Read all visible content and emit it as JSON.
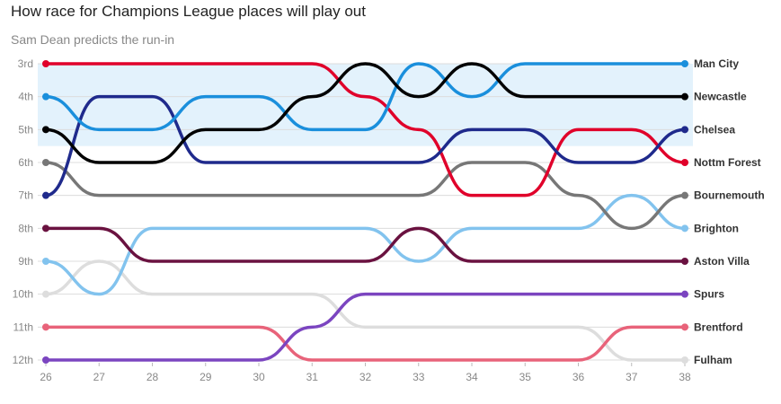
{
  "chart_data": {
    "type": "line",
    "subtype": "bump",
    "title": "How race for Champions League places will play out",
    "subtitle": "Sam Dean predicts the run-in",
    "xlabel": "",
    "ylabel": "",
    "x": [
      26,
      27,
      28,
      29,
      30,
      31,
      32,
      33,
      34,
      35,
      36,
      37,
      38
    ],
    "y_ticks": [
      3,
      4,
      5,
      6,
      7,
      8,
      9,
      10,
      11,
      12
    ],
    "y_tick_labels": [
      "3rd",
      "4th",
      "5th",
      "6th",
      "7th",
      "8th",
      "9th",
      "10th",
      "11th",
      "12th"
    ],
    "ylim": [
      3,
      12
    ],
    "y_inverted": true,
    "highlight_band": {
      "from": 3,
      "to": 5.5,
      "color": "#e3f2fc"
    },
    "grid": true,
    "series": [
      {
        "name": "Fulham",
        "color": "#dddddd",
        "values": [
          10,
          9,
          10,
          10,
          10,
          10,
          11,
          11,
          11,
          11,
          11,
          12,
          12
        ]
      },
      {
        "name": "Brentford",
        "color": "#e8637a",
        "values": [
          11,
          11,
          11,
          11,
          11,
          12,
          12,
          12,
          12,
          12,
          12,
          11,
          11
        ]
      },
      {
        "name": "Spurs",
        "color": "#7b45c0",
        "values": [
          12,
          12,
          12,
          12,
          12,
          11,
          10,
          10,
          10,
          10,
          10,
          10,
          10
        ]
      },
      {
        "name": "Brighton",
        "color": "#82c3ee",
        "values": [
          9,
          10,
          8,
          8,
          8,
          8,
          8,
          9,
          8,
          8,
          8,
          7,
          8
        ]
      },
      {
        "name": "Aston Villa",
        "color": "#6a1240",
        "values": [
          8,
          8,
          9,
          9,
          9,
          9,
          9,
          8,
          9,
          9,
          9,
          9,
          9
        ]
      },
      {
        "name": "Bournemouth",
        "color": "#777777",
        "values": [
          6,
          7,
          7,
          7,
          7,
          7,
          7,
          7,
          6,
          6,
          7,
          8,
          7
        ]
      },
      {
        "name": "Nottm Forest",
        "color": "#e0002a",
        "values": [
          3,
          3,
          3,
          3,
          3,
          3,
          4,
          5,
          7,
          7,
          5,
          5,
          6
        ]
      },
      {
        "name": "Chelsea",
        "color": "#1f2a8c",
        "values": [
          7,
          4,
          4,
          6,
          6,
          6,
          6,
          6,
          5,
          5,
          6,
          6,
          5
        ]
      },
      {
        "name": "Man City",
        "color": "#1a8fdc",
        "values": [
          4,
          5,
          5,
          4,
          4,
          5,
          5,
          3,
          4,
          3,
          3,
          3,
          3
        ]
      },
      {
        "name": "Newcastle",
        "color": "#000000",
        "values": [
          5,
          6,
          6,
          5,
          5,
          4,
          3,
          4,
          3,
          4,
          4,
          4,
          4
        ]
      }
    ]
  }
}
